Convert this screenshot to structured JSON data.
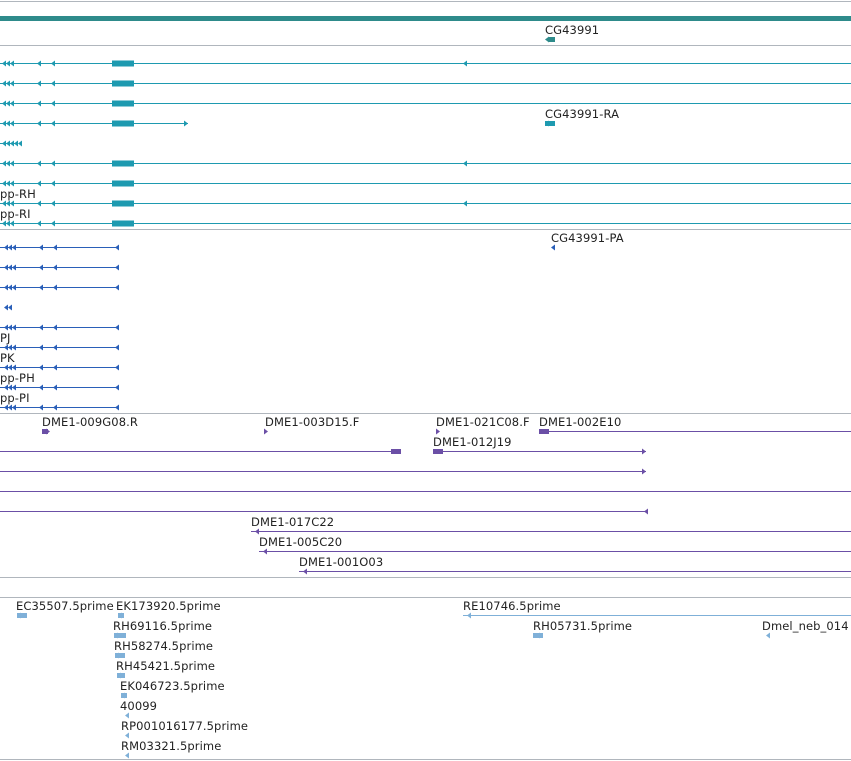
{
  "colors": {
    "gene": "#2e8b8b",
    "transcript": "#1e9ab0",
    "protein": "#2a5fb8",
    "clone": "#6b4fa6",
    "est": "#7fb0d8",
    "divider": "#b0b6bd"
  },
  "gene_track": {
    "labels": [
      "CG43991"
    ]
  },
  "transcript_track": {
    "labels": [
      "CG43991-RA",
      "pp-RH",
      "pp-RI"
    ]
  },
  "protein_track": {
    "labels": [
      "CG43991-PA",
      "PJ",
      "PK",
      "pp-PH",
      "pp-PI"
    ]
  },
  "clone_track": {
    "labels": [
      "DME1-009G08.R",
      "DME1-003D15.F",
      "DME1-021C08.F",
      "DME1-002E10",
      "DME1-012J19",
      "DME1-017C22",
      "DME1-005C20",
      "DME1-001O03"
    ]
  },
  "est_track": {
    "labels": [
      "EC35507.5prime",
      "EK173920.5prime",
      "RE10746.5prime",
      "RH69116.5prime",
      "RH05731.5prime",
      "Dmel_neb_014",
      "RH58274.5prime",
      "RH45421.5prime",
      "EK046723.5prime",
      "40099",
      "RP001016177.5prime",
      "RM03321.5prime"
    ]
  }
}
